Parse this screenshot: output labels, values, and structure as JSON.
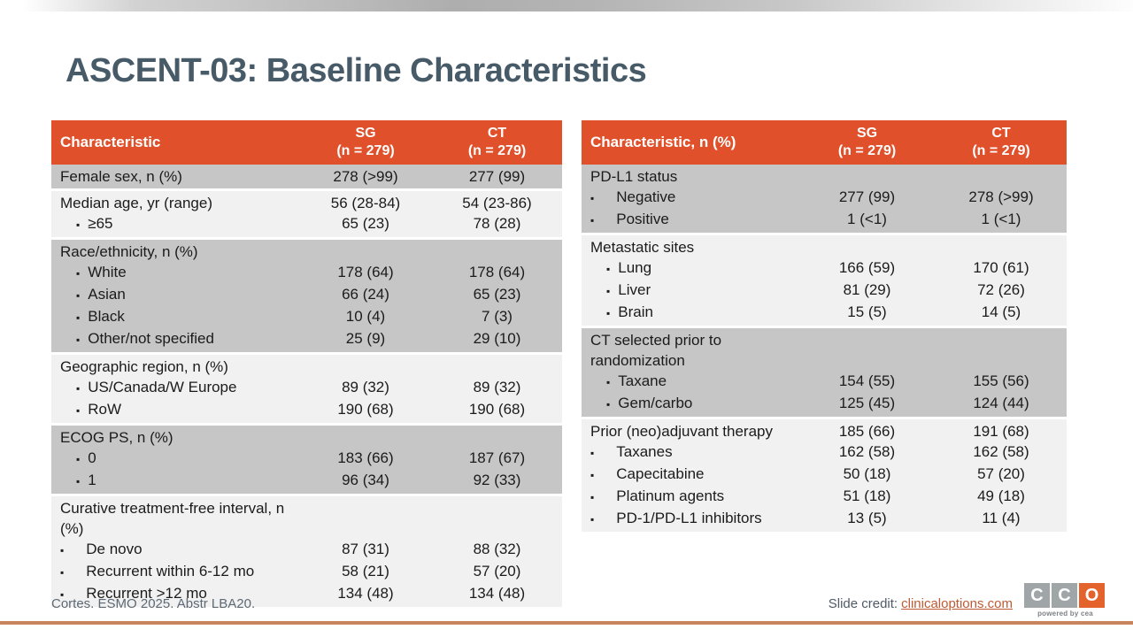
{
  "slide": {
    "title": "ASCENT-03: Baseline Characteristics",
    "footer_reference": "Cortes. ESMO 2025. Abstr LBA20.",
    "credit_label": "Slide credit:",
    "credit_link": "clinicaloptions.com",
    "logo": {
      "letters": [
        "C",
        "C",
        "O"
      ],
      "tagline": "powered by cea"
    }
  },
  "colors": {
    "table_header": "#e0512b",
    "row_dark": "#c6c6c6",
    "row_light": "#f1f1f1",
    "title_text": "#475a68",
    "credit_link": "#be5a34",
    "bottom_line": "#c9845d",
    "logo_gray": "#a0a5a8",
    "logo_orange": "#e4622c"
  },
  "tables": [
    {
      "header": {
        "label": "Characteristic",
        "columns": [
          {
            "title": "SG",
            "subtitle": "(n = 279)"
          },
          {
            "title": "CT",
            "subtitle": "(n = 279)"
          }
        ]
      },
      "groups": [
        {
          "shade": "dark",
          "rows": [
            {
              "label": "Female sex, n (%)",
              "bullet": false,
              "sg": "278 (>99)",
              "ct": "277 (99)"
            }
          ]
        },
        {
          "shade": "light",
          "rows": [
            {
              "label": "Median age, yr (range)",
              "bullet": false,
              "sg": "56 (28-84)",
              "ct": "54 (23-86)"
            },
            {
              "label": "≥65",
              "bullet": true,
              "hang": false,
              "sg": "65 (23)",
              "ct": "78 (28)"
            }
          ]
        },
        {
          "shade": "dark",
          "rows": [
            {
              "label": "Race/ethnicity, n (%)",
              "bullet": false,
              "sg": "",
              "ct": ""
            },
            {
              "label": "White",
              "bullet": true,
              "hang": false,
              "sg": "178 (64)",
              "ct": "178 (64)"
            },
            {
              "label": "Asian",
              "bullet": true,
              "hang": false,
              "sg": "66 (24)",
              "ct": "65 (23)"
            },
            {
              "label": "Black",
              "bullet": true,
              "hang": false,
              "sg": "10 (4)",
              "ct": "7 (3)"
            },
            {
              "label": "Other/not specified",
              "bullet": true,
              "hang": false,
              "sg": "25 (9)",
              "ct": "29 (10)"
            }
          ]
        },
        {
          "shade": "light",
          "rows": [
            {
              "label": "Geographic region, n (%)",
              "bullet": false,
              "sg": "",
              "ct": ""
            },
            {
              "label": "US/Canada/W Europe",
              "bullet": true,
              "hang": false,
              "sg": "89 (32)",
              "ct": "89 (32)"
            },
            {
              "label": "RoW",
              "bullet": true,
              "hang": false,
              "sg": "190 (68)",
              "ct": "190 (68)"
            }
          ]
        },
        {
          "shade": "dark",
          "rows": [
            {
              "label": "ECOG PS, n (%)",
              "bullet": false,
              "sg": "",
              "ct": ""
            },
            {
              "label": "0",
              "bullet": true,
              "hang": false,
              "sg": "183 (66)",
              "ct": "187 (67)"
            },
            {
              "label": "1",
              "bullet": true,
              "hang": false,
              "sg": "96 (34)",
              "ct": "92 (33)"
            }
          ]
        },
        {
          "shade": "light",
          "rows": [
            {
              "label": "Curative treatment-free interval, n (%)",
              "bullet": false,
              "sg": "",
              "ct": ""
            },
            {
              "label": "De novo",
              "bullet": true,
              "hang": true,
              "sg": "87 (31)",
              "ct": "88 (32)"
            },
            {
              "label": "Recurrent within 6-12 mo",
              "bullet": true,
              "hang": true,
              "sg": "58 (21)",
              "ct": "57 (20)"
            },
            {
              "label": "Recurrent >12 mo",
              "bullet": true,
              "hang": true,
              "sg": "134 (48)",
              "ct": "134 (48)"
            }
          ]
        }
      ]
    },
    {
      "header": {
        "label": "Characteristic, n (%)",
        "columns": [
          {
            "title": "SG",
            "subtitle": "(n = 279)"
          },
          {
            "title": "CT",
            "subtitle": "(n = 279)"
          }
        ]
      },
      "groups": [
        {
          "shade": "dark",
          "rows": [
            {
              "label": "PD-L1 status",
              "bullet": false,
              "sg": "",
              "ct": ""
            },
            {
              "label": "Negative",
              "bullet": true,
              "hang": true,
              "sg": "277 (99)",
              "ct": "278 (>99)"
            },
            {
              "label": "Positive",
              "bullet": true,
              "hang": true,
              "sg": "1 (<1)",
              "ct": "1 (<1)"
            }
          ]
        },
        {
          "shade": "light",
          "rows": [
            {
              "label": "Metastatic sites",
              "bullet": false,
              "sg": "",
              "ct": ""
            },
            {
              "label": "Lung",
              "bullet": true,
              "hang": false,
              "sg": "166 (59)",
              "ct": "170 (61)"
            },
            {
              "label": "Liver",
              "bullet": true,
              "hang": false,
              "sg": "81 (29)",
              "ct": "72 (26)"
            },
            {
              "label": "Brain",
              "bullet": true,
              "hang": false,
              "sg": "15 (5)",
              "ct": "14 (5)"
            }
          ]
        },
        {
          "shade": "dark",
          "rows": [
            {
              "label": "CT selected prior to randomization",
              "bullet": false,
              "sg": "",
              "ct": ""
            },
            {
              "label": "Taxane",
              "bullet": true,
              "hang": false,
              "sg": "154 (55)",
              "ct": "155 (56)"
            },
            {
              "label": "Gem/carbo",
              "bullet": true,
              "hang": false,
              "sg": "125 (45)",
              "ct": "124 (44)"
            }
          ]
        },
        {
          "shade": "light",
          "rows": [
            {
              "label": "Prior (neo)adjuvant therapy",
              "bullet": false,
              "sg": "185 (66)",
              "ct": "191 (68)"
            },
            {
              "label": "Taxanes",
              "bullet": true,
              "hang": true,
              "sg": "162 (58)",
              "ct": "162 (58)"
            },
            {
              "label": "Capecitabine",
              "bullet": true,
              "hang": true,
              "sg": "50 (18)",
              "ct": "57 (20)"
            },
            {
              "label": "Platinum agents",
              "bullet": true,
              "hang": true,
              "sg": "51 (18)",
              "ct": "49 (18)"
            },
            {
              "label": "PD-1/PD-L1 inhibitors",
              "bullet": true,
              "hang": true,
              "sg": "13 (5)",
              "ct": "11 (4)"
            }
          ]
        }
      ]
    }
  ]
}
